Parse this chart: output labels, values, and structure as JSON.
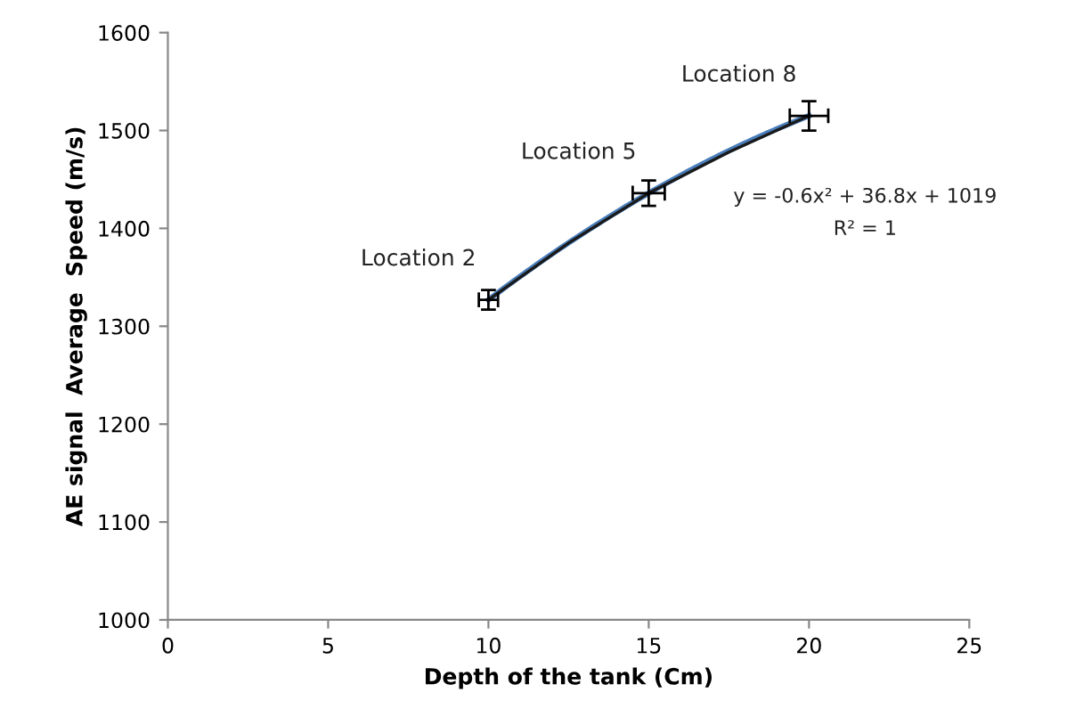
{
  "chart_data": {
    "type": "line",
    "xlabel": "Depth of the tank (Cm)",
    "ylabel": "AE signal  Average  Speed (m/s)",
    "xlim": [
      0,
      25
    ],
    "xticks": [
      0,
      5,
      10,
      15,
      20,
      25
    ],
    "ylim": [
      1000,
      1600
    ],
    "yticks": [
      1000,
      1100,
      1200,
      1300,
      1400,
      1500,
      1600
    ],
    "grid": false,
    "marker": "none",
    "line_style": "solid",
    "series": [
      {
        "color": "#4a7ebb",
        "x": [
          10,
          15,
          20
        ],
        "values": [
          1327,
          1436,
          1515
        ],
        "errors": [
          10,
          13,
          15
        ],
        "xerrors": [
          0.3,
          0.5,
          0.6
        ]
      },
      {
        "color": "#1a1a1a",
        "x": [
          10,
          12.5,
          15,
          17.5,
          20
        ],
        "values": [
          1327,
          1385,
          1436,
          1478,
          1515
        ]
      }
    ],
    "annotations": [
      {
        "text": "Location 2",
        "x": 10,
        "y": 1327
      },
      {
        "text": "Location 5",
        "x": 15,
        "y": 1436
      },
      {
        "text": "Location 8",
        "x": 20,
        "y": 1515
      },
      "y = -0.6x² + 36.8x + 1019",
      "R² = 1"
    ]
  }
}
